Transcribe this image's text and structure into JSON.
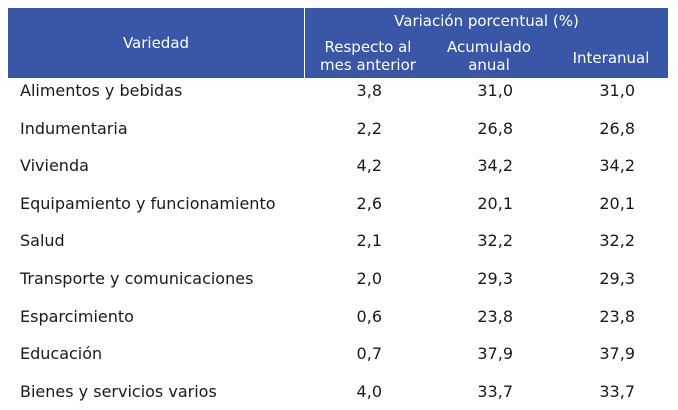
{
  "header": {
    "variedad": "Variedad",
    "group": "Variación porcentual (%)",
    "col1": [
      "Respecto al",
      "mes anterior"
    ],
    "col2": [
      "Acumulado",
      "anual"
    ],
    "col3": [
      "Interanual"
    ]
  },
  "rows": [
    {
      "name": "Alimentos y bebidas",
      "v1": "3,8",
      "v2": "31,0",
      "v3": "31,0"
    },
    {
      "name": "Indumentaria",
      "v1": "2,2",
      "v2": "26,8",
      "v3": "26,8"
    },
    {
      "name": "Vivienda",
      "v1": "4,2",
      "v2": "34,2",
      "v3": "34,2"
    },
    {
      "name": "Equipamiento y funcionamiento",
      "v1": "2,6",
      "v2": "20,1",
      "v3": "20,1"
    },
    {
      "name": "Salud",
      "v1": "2,1",
      "v2": "32,2",
      "v3": "32,2"
    },
    {
      "name": "Transporte y comunicaciones",
      "v1": "2,0",
      "v2": "29,3",
      "v3": "29,3"
    },
    {
      "name": "Esparcimiento",
      "v1": "0,6",
      "v2": "23,8",
      "v3": "23,8"
    },
    {
      "name": "Educación",
      "v1": "0,7",
      "v2": "37,9",
      "v3": "37,9"
    },
    {
      "name": "Bienes y servicios varios",
      "v1": "4,0",
      "v2": "33,7",
      "v3": "33,7"
    }
  ],
  "colors": {
    "header_bg": "#3a57a7",
    "header_text": "#ffffff",
    "body_text": "#1a1a1a"
  }
}
